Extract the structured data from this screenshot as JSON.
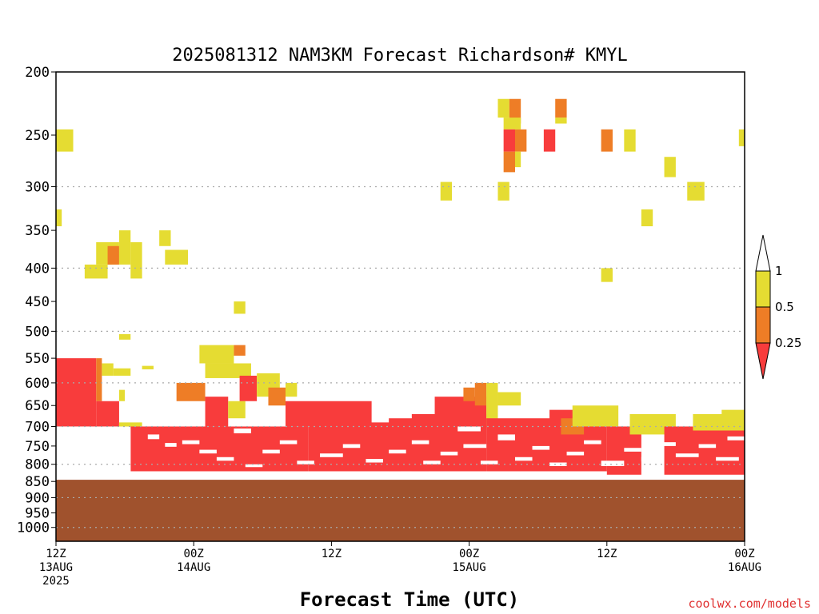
{
  "chart_data": {
    "type": "heatmap",
    "title": "2025081312 NAM3KM Forecast Richardson# KMYL",
    "xlabel": "Forecast Time (UTC)",
    "ylabel": "",
    "y_axis": {
      "scale": "pressure (log)",
      "inverted": true,
      "ylim": [
        200,
        1050
      ],
      "ticks": [
        "200",
        "250",
        "300",
        "350",
        "400",
        "450",
        "500",
        "550",
        "600",
        "650",
        "700",
        "750",
        "800",
        "850",
        "900",
        "950",
        "1000"
      ],
      "dotted_gridlines": [
        300,
        400,
        500,
        600,
        700,
        800,
        900,
        1000
      ]
    },
    "x_axis": {
      "xlim_hours": [
        0,
        60
      ],
      "ticks": [
        {
          "hour": 0,
          "lines": [
            "12Z",
            "13AUG",
            "2025"
          ]
        },
        {
          "hour": 12,
          "lines": [
            "00Z",
            "14AUG"
          ]
        },
        {
          "hour": 24,
          "lines": [
            "12Z"
          ]
        },
        {
          "hour": 36,
          "lines": [
            "00Z",
            "15AUG"
          ]
        },
        {
          "hour": 48,
          "lines": [
            "12Z"
          ]
        },
        {
          "hour": 60,
          "lines": [
            "00Z",
            "16AUG"
          ]
        }
      ]
    },
    "colorbar": {
      "placement": "right",
      "labels": [
        "1",
        "0.5",
        "0.25"
      ],
      "classes": [
        {
          "name": "lt_0.25",
          "color": "#f83c3c"
        },
        {
          "name": "0.25-0.5",
          "color": "#ee7d26"
        },
        {
          "name": "0.5-1",
          "color": "#e5dc32"
        }
      ]
    },
    "ground_color": "#a0522d",
    "ground_top_hpa": 845,
    "cells": [
      [
        0,
        245,
        1.5,
        265,
        "0.5-1"
      ],
      [
        0,
        325,
        0.5,
        345,
        "0.5-1"
      ],
      [
        2.5,
        395,
        4.5,
        415,
        "0.5-1"
      ],
      [
        3.5,
        365,
        5.5,
        395,
        "0.5-1"
      ],
      [
        4.5,
        370,
        5.5,
        395,
        "0.25-0.5"
      ],
      [
        5.5,
        350,
        6.5,
        395,
        "0.5-1"
      ],
      [
        6.5,
        365,
        7.5,
        415,
        "0.5-1"
      ],
      [
        9,
        350,
        10,
        370,
        "0.5-1"
      ],
      [
        9.5,
        375,
        11.5,
        395,
        "0.5-1"
      ],
      [
        5.5,
        505,
        6.5,
        515,
        "0.5-1"
      ],
      [
        7.5,
        565,
        8.5,
        572,
        "0.5-1"
      ],
      [
        15.5,
        450,
        16.5,
        470,
        "0.5-1"
      ],
      [
        12.5,
        525,
        15.5,
        560,
        "0.5-1"
      ],
      [
        15.5,
        525,
        16.5,
        545,
        "0.25-0.5"
      ],
      [
        13,
        560,
        17,
        590,
        "0.5-1"
      ],
      [
        0,
        550,
        3.5,
        700,
        "lt_0.25"
      ],
      [
        3.5,
        550,
        4,
        640,
        "0.25-0.5"
      ],
      [
        4,
        560,
        5,
        585,
        "0.5-1"
      ],
      [
        5,
        570,
        6.5,
        585,
        "0.5-1"
      ],
      [
        3.5,
        640,
        5.5,
        700,
        "lt_0.25"
      ],
      [
        5.5,
        615,
        6,
        640,
        "0.5-1"
      ],
      [
        5.5,
        690,
        7.5,
        705,
        "0.5-1"
      ],
      [
        6.5,
        700,
        22,
        820,
        "lt_0.25"
      ],
      [
        10.5,
        600,
        13,
        640,
        "0.25-0.5"
      ],
      [
        13,
        630,
        15,
        700,
        "lt_0.25"
      ],
      [
        15,
        640,
        16.5,
        680,
        "0.5-1"
      ],
      [
        16,
        585,
        17.5,
        640,
        "lt_0.25"
      ],
      [
        17.5,
        580,
        19.5,
        630,
        "0.5-1"
      ],
      [
        18.5,
        610,
        20,
        650,
        "0.25-0.5"
      ],
      [
        20,
        600,
        21,
        630,
        "0.5-1"
      ],
      [
        20,
        640,
        27.5,
        700,
        "lt_0.25"
      ],
      [
        22,
        690,
        30,
        820,
        "lt_0.25"
      ],
      [
        29,
        680,
        32.5,
        820,
        "lt_0.25"
      ],
      [
        31,
        670,
        37.5,
        820,
        "lt_0.25"
      ],
      [
        33,
        630,
        37.5,
        690,
        "lt_0.25"
      ],
      [
        35.5,
        610,
        36.5,
        640,
        "0.25-0.5"
      ],
      [
        36.5,
        600,
        37.5,
        650,
        "0.25-0.5"
      ],
      [
        37.5,
        600,
        38.5,
        700,
        "0.5-1"
      ],
      [
        38.5,
        620,
        40.5,
        650,
        "0.5-1"
      ],
      [
        37.5,
        680,
        48,
        820,
        "lt_0.25"
      ],
      [
        43,
        660,
        48,
        700,
        "lt_0.25"
      ],
      [
        44,
        680,
        46,
        720,
        "0.25-0.5"
      ],
      [
        45,
        650,
        49,
        700,
        "0.5-1"
      ],
      [
        48,
        700,
        51,
        830,
        "lt_0.25"
      ],
      [
        50,
        670,
        54,
        720,
        "0.5-1"
      ],
      [
        53,
        700,
        60,
        830,
        "lt_0.25"
      ],
      [
        55.5,
        670,
        60,
        710,
        "0.5-1"
      ],
      [
        58,
        660,
        60,
        700,
        "0.5-1"
      ],
      [
        38.5,
        220,
        39.5,
        235,
        "0.5-1"
      ],
      [
        39.5,
        220,
        40.5,
        240,
        "0.25-0.5"
      ],
      [
        39,
        235,
        40.5,
        245,
        "0.5-1"
      ],
      [
        39,
        245,
        40,
        265,
        "lt_0.25"
      ],
      [
        40,
        245,
        41,
        265,
        "0.25-0.5"
      ],
      [
        39,
        265,
        40,
        285,
        "0.25-0.5"
      ],
      [
        40,
        265,
        40.5,
        280,
        "0.5-1"
      ],
      [
        42.5,
        245,
        43.5,
        265,
        "lt_0.25"
      ],
      [
        43.5,
        220,
        44.5,
        235,
        "0.25-0.5"
      ],
      [
        43.5,
        235,
        44.5,
        240,
        "0.5-1"
      ],
      [
        38.5,
        295,
        39.5,
        315,
        "0.5-1"
      ],
      [
        33.5,
        295,
        34.5,
        315,
        "0.5-1"
      ],
      [
        47.5,
        245,
        48.5,
        265,
        "0.25-0.5"
      ],
      [
        49.5,
        245,
        50.5,
        265,
        "0.5-1"
      ],
      [
        53,
        270,
        54,
        290,
        "0.5-1"
      ],
      [
        51,
        325,
        52,
        345,
        "0.5-1"
      ],
      [
        55,
        295,
        56.5,
        315,
        "0.5-1"
      ],
      [
        47.5,
        400,
        48.5,
        420,
        "0.5-1"
      ],
      [
        59.5,
        245,
        60,
        260,
        "0.5-1"
      ]
    ],
    "gaps": [
      [
        0,
        700,
        6.5,
        820
      ],
      [
        0.5,
        745,
        2.5,
        760
      ],
      [
        8,
        720,
        9,
        732
      ],
      [
        9.5,
        742,
        10.5,
        752
      ],
      [
        11,
        735,
        12.5,
        745
      ],
      [
        12.5,
        760,
        14,
        770
      ],
      [
        14,
        780,
        15.5,
        790
      ],
      [
        15.5,
        705,
        17,
        717
      ],
      [
        16.5,
        800,
        18,
        808
      ],
      [
        18,
        760,
        19.5,
        770
      ],
      [
        19.5,
        735,
        21,
        745
      ],
      [
        21,
        790,
        22.5,
        800
      ],
      [
        23,
        770,
        25,
        780
      ],
      [
        25,
        745,
        26.5,
        755
      ],
      [
        27,
        785,
        28.5,
        795
      ],
      [
        29,
        760,
        30.5,
        770
      ],
      [
        31,
        735,
        32.5,
        745
      ],
      [
        32,
        790,
        33.5,
        800
      ],
      [
        33.5,
        765,
        35,
        775
      ],
      [
        35,
        700,
        37,
        712
      ],
      [
        35.5,
        745,
        37.5,
        755
      ],
      [
        37,
        790,
        38.5,
        800
      ],
      [
        38.5,
        720,
        40,
        735
      ],
      [
        40,
        780,
        41.5,
        790
      ],
      [
        41.5,
        750,
        43,
        760
      ],
      [
        43,
        795,
        44.5,
        805
      ],
      [
        44.5,
        765,
        46,
        775
      ],
      [
        46,
        735,
        47.5,
        745
      ],
      [
        47.5,
        790,
        49.5,
        805
      ],
      [
        49.5,
        755,
        51,
        765
      ],
      [
        51,
        780,
        52.5,
        792
      ],
      [
        52.5,
        740,
        54,
        750
      ],
      [
        54,
        770,
        56,
        780
      ],
      [
        56,
        745,
        57.5,
        755
      ],
      [
        57.5,
        780,
        59.5,
        790
      ],
      [
        58.5,
        725,
        60,
        735
      ]
    ]
  },
  "credit": "coolwx.com/models"
}
